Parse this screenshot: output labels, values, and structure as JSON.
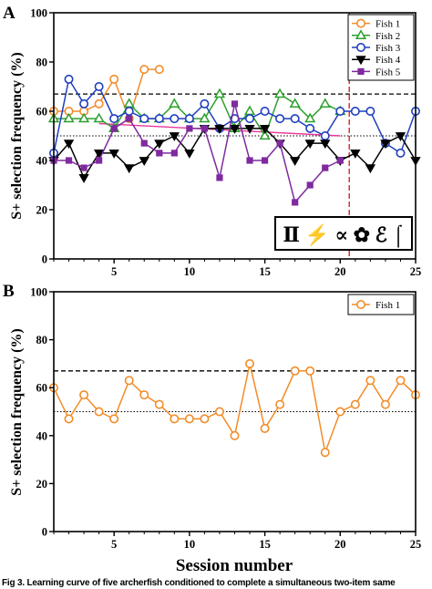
{
  "chart_data": [
    {
      "panel_label": "A",
      "type": "line",
      "ylabel": "S+ selection frequency (%)",
      "ylim": [
        0,
        100
      ],
      "xlim": [
        1,
        25
      ],
      "yticks": [
        "0",
        "20",
        "40",
        "60",
        "80",
        "100"
      ],
      "xticks": [
        "5",
        "10",
        "15",
        "20",
        "25"
      ],
      "reference_lines": [
        {
          "y": 67,
          "style": "dashed"
        },
        {
          "y": 50,
          "style": "dotted"
        }
      ],
      "vertical_line": {
        "x": 20.6,
        "style": "dashed",
        "color": "#d62728"
      },
      "icons_strip": "Ⅱ ⚡ ∝ ✿ ℰ ⌠",
      "series": [
        {
          "name": "Fish 1",
          "marker": "circle-open",
          "color": "#f28c28",
          "x": [
            1,
            2,
            3,
            4,
            5,
            6,
            7,
            8
          ],
          "y": [
            60,
            60,
            60,
            63,
            73,
            57,
            77,
            77
          ]
        },
        {
          "name": "Fish 2",
          "marker": "triangle-open",
          "color": "#2ca02c",
          "x": [
            1,
            2,
            3,
            4,
            5,
            6,
            7,
            8,
            9,
            10,
            11,
            12,
            13,
            14,
            15,
            16,
            17,
            18,
            19,
            20
          ],
          "y": [
            57,
            57,
            57,
            57,
            53,
            63,
            57,
            57,
            63,
            57,
            57,
            67,
            53,
            60,
            50,
            67,
            63,
            57,
            63,
            60
          ]
        },
        {
          "name": "Fish 3",
          "marker": "circle-open",
          "color": "#1f3fbf",
          "x": [
            1,
            2,
            3,
            4,
            5,
            6,
            7,
            8,
            9,
            10,
            11,
            12,
            13,
            14,
            15,
            16,
            17,
            18,
            19,
            20,
            21,
            22,
            23,
            24,
            25
          ],
          "y": [
            43,
            73,
            63,
            70,
            57,
            60,
            57,
            57,
            57,
            57,
            63,
            53,
            57,
            57,
            60,
            57,
            57,
            53,
            50,
            60,
            60,
            60,
            47,
            43,
            60
          ]
        },
        {
          "name": "Fish 4",
          "marker": "triangle-down-filled",
          "color": "#000000",
          "x": [
            1,
            2,
            3,
            4,
            5,
            6,
            7,
            8,
            9,
            10,
            11,
            12,
            13,
            14,
            15,
            16,
            17,
            18,
            19,
            20,
            21,
            22,
            23,
            24,
            25
          ],
          "y": [
            40,
            47,
            33,
            43,
            43,
            37,
            40,
            47,
            50,
            43,
            53,
            53,
            53,
            53,
            53,
            47,
            40,
            47,
            47,
            40,
            43,
            37,
            47,
            50,
            40
          ]
        },
        {
          "name": "Fish 5",
          "marker": "square-filled",
          "color": "#7f2a9f",
          "x": [
            1,
            2,
            3,
            4,
            5,
            6,
            7,
            8,
            9,
            10,
            11,
            12,
            13,
            14,
            15,
            16,
            17,
            18,
            19,
            20
          ],
          "y": [
            40,
            40,
            37,
            40,
            53,
            57,
            47,
            43,
            43,
            53,
            53,
            33,
            63,
            40,
            40,
            47,
            23,
            30,
            37,
            40
          ]
        }
      ],
      "trend_line": {
        "color": "#e8389a",
        "x": [
          4,
          20
        ],
        "y": [
          55,
          50
        ]
      }
    },
    {
      "panel_label": "B",
      "type": "line",
      "xlabel": "Session number",
      "ylabel": "S+ selection frequency (%)",
      "ylim": [
        0,
        100
      ],
      "xlim": [
        1,
        25
      ],
      "yticks": [
        "0",
        "20",
        "40",
        "60",
        "80",
        "100"
      ],
      "xticks": [
        "5",
        "10",
        "15",
        "20",
        "25"
      ],
      "reference_lines": [
        {
          "y": 67,
          "style": "dashed"
        },
        {
          "y": 50,
          "style": "dotted"
        }
      ],
      "series": [
        {
          "name": "Fish 1",
          "marker": "circle-open",
          "color": "#f28c28",
          "x": [
            1,
            2,
            3,
            4,
            5,
            6,
            7,
            8,
            9,
            10,
            11,
            12,
            13,
            14,
            15,
            16,
            17,
            18,
            19,
            20,
            21,
            22,
            23,
            24,
            25
          ],
          "y": [
            60,
            47,
            57,
            50,
            47,
            63,
            57,
            53,
            47,
            47,
            47,
            50,
            40,
            70,
            43,
            53,
            67,
            67,
            33,
            50,
            53,
            63,
            53,
            63,
            57
          ]
        }
      ]
    }
  ],
  "caption": "Fig 3.  Learning curve of five archerfish conditioned to complete a simultaneous two-item same"
}
